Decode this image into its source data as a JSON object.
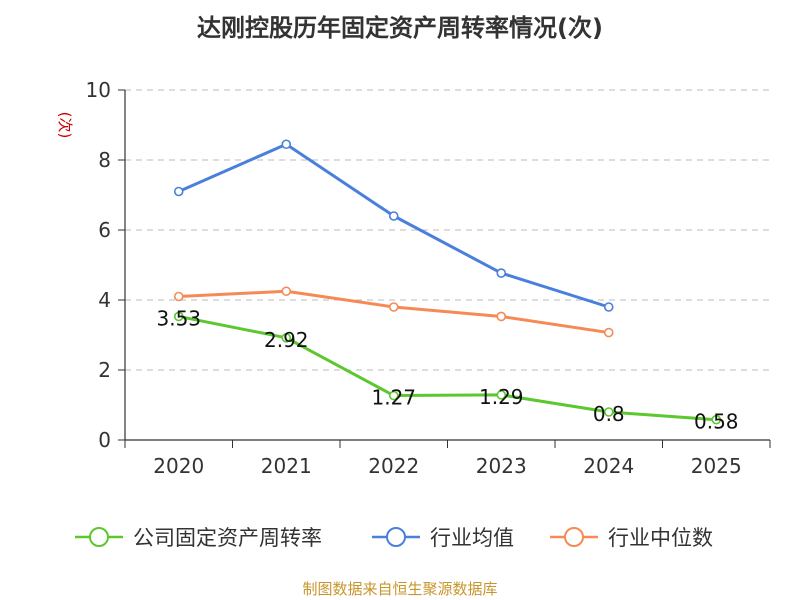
{
  "chart_data": {
    "type": "line",
    "title": "达刚控股历年固定资产周转率情况(次)",
    "ylabel": "(次)",
    "xlabel": "",
    "categories": [
      "2020",
      "2021",
      "2022",
      "2023",
      "2024",
      "2025"
    ],
    "ylim": [
      0,
      10
    ],
    "yticks": [
      0,
      2,
      4,
      6,
      8,
      10
    ],
    "grid": true,
    "legend_position": "bottom",
    "series": [
      {
        "name": "公司固定资产周转率",
        "color": "#5cc72e",
        "values": [
          3.53,
          2.92,
          1.27,
          1.29,
          0.8,
          0.58
        ],
        "labels": [
          "3.53",
          "2.92",
          "1.27",
          "1.29",
          "0.8",
          "0.58"
        ],
        "show_labels": true
      },
      {
        "name": "行业均值",
        "color": "#4a7fdc",
        "values": [
          7.1,
          8.45,
          6.4,
          4.77,
          3.8,
          null
        ],
        "show_labels": false
      },
      {
        "name": "行业中位数",
        "color": "#f58a55",
        "values": [
          4.1,
          4.25,
          3.8,
          3.53,
          3.07,
          null
        ],
        "show_labels": false
      }
    ]
  },
  "source": "制图数据来自恒生聚源数据库"
}
